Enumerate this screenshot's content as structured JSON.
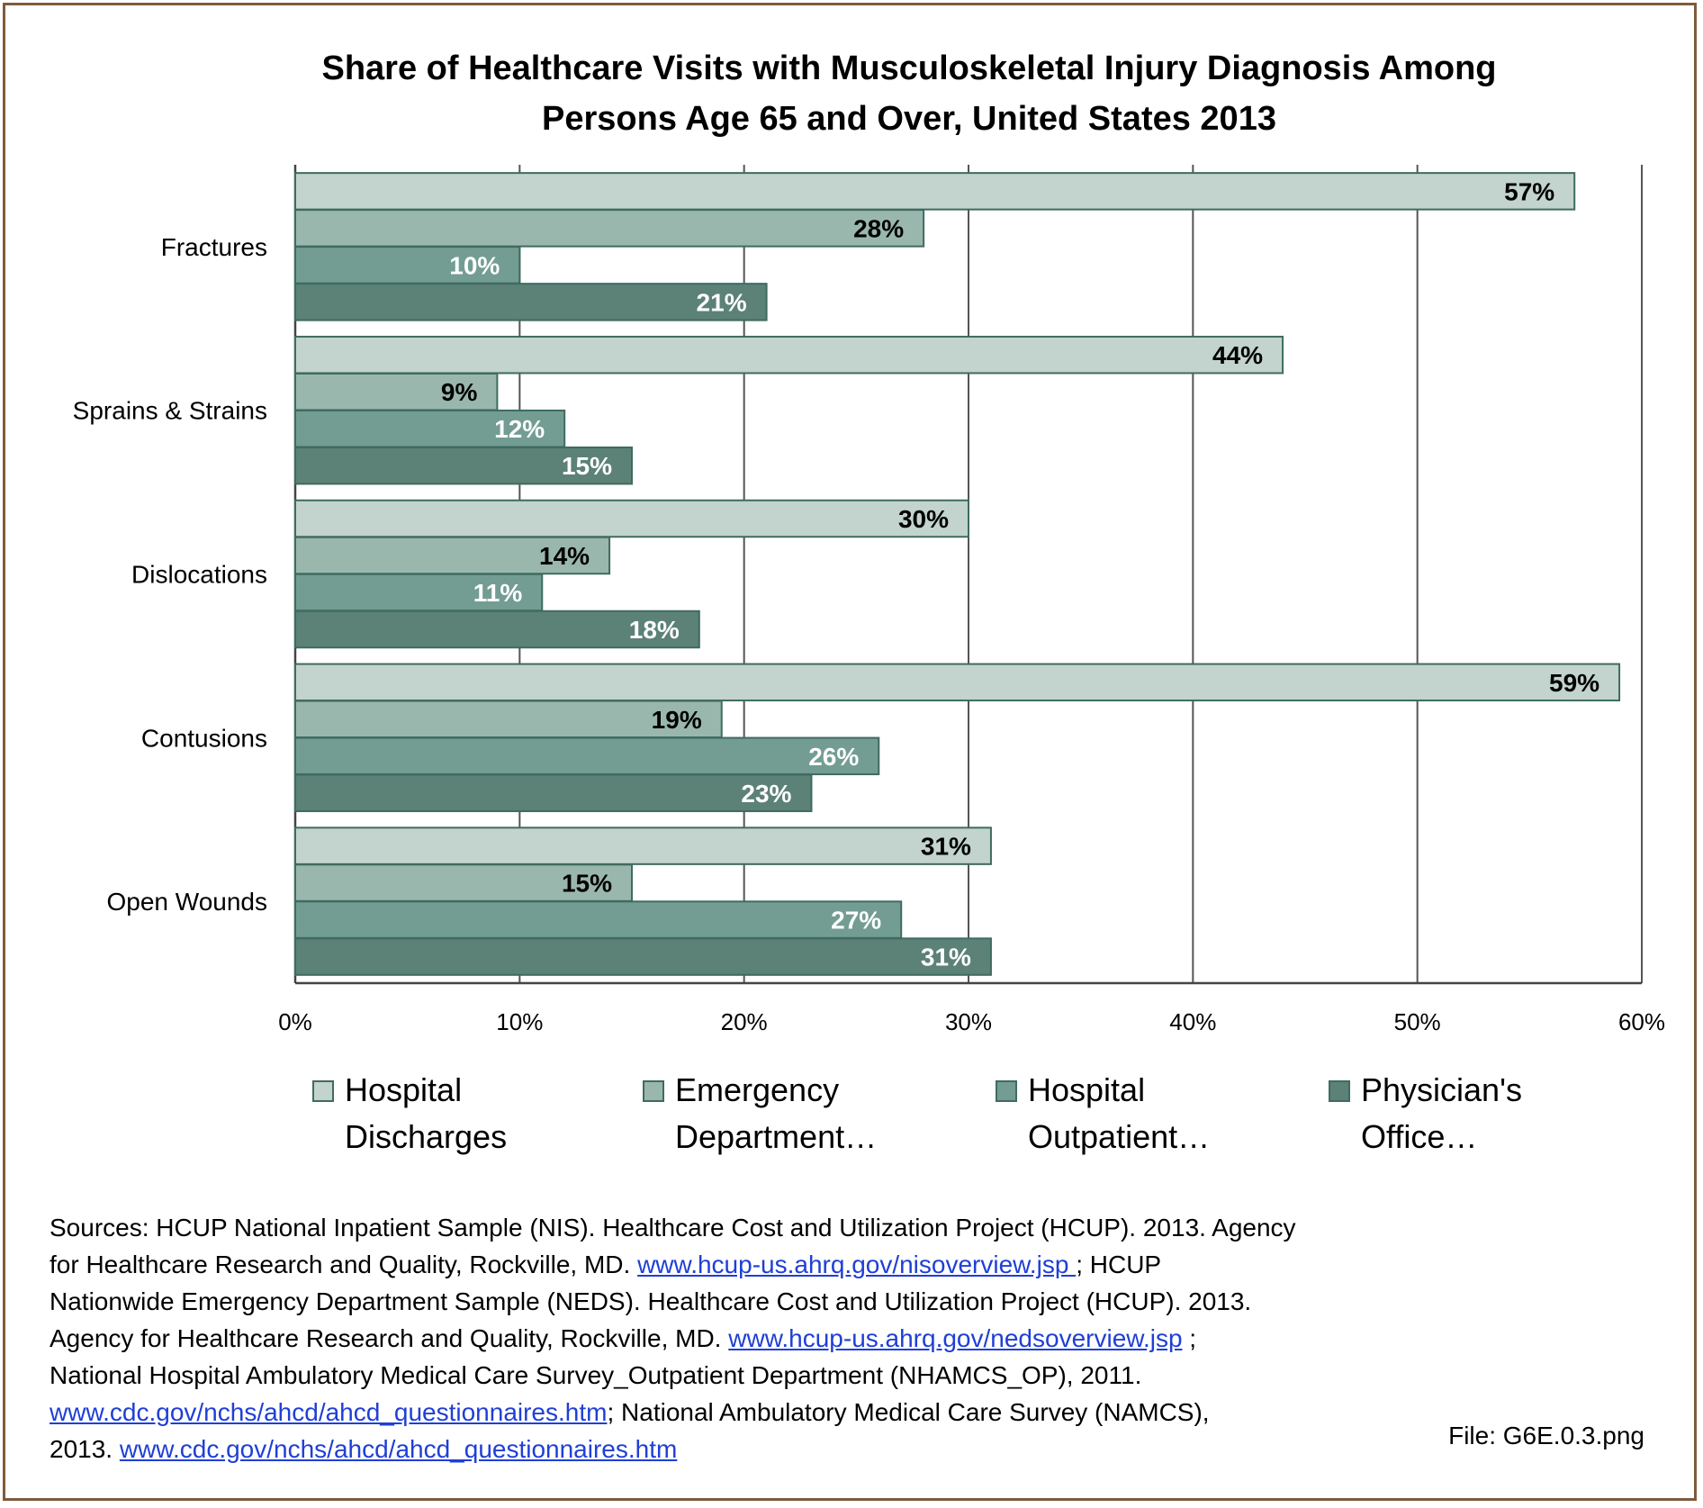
{
  "chart_data": {
    "type": "bar",
    "orientation": "horizontal",
    "title": "Share of Healthcare Visits with Musculoskeletal Injury Diagnosis Among Persons Age 65 and Over, United States 2013",
    "title_lines": [
      "Share of Healthcare Visits with Musculoskeletal Injury Diagnosis Among",
      "Persons Age 65 and Over, United States 2013"
    ],
    "categories": [
      "Fractures",
      "Sprains & Strains",
      "Dislocations",
      "Contusions",
      "Open Wounds"
    ],
    "series": [
      {
        "name": "Hospital Discharges",
        "legend_lines": [
          "Hospital",
          "Discharges"
        ],
        "values": [
          57,
          44,
          30,
          59,
          31
        ],
        "labels": [
          "57%",
          "44%",
          "30%",
          "59%",
          "31%"
        ],
        "color": "#c3d3ce",
        "label_color": "#000000"
      },
      {
        "name": "Emergency Department…",
        "legend_lines": [
          "Emergency",
          "Department…"
        ],
        "values": [
          28,
          9,
          14,
          19,
          15
        ],
        "labels": [
          "28%",
          "9%",
          "14%",
          "19%",
          "15%"
        ],
        "color": "#9ab7ae",
        "label_color": "#000000"
      },
      {
        "name": "Hospital Outpatient…",
        "legend_lines": [
          "Hospital",
          "Outpatient…"
        ],
        "values": [
          10,
          12,
          11,
          26,
          27
        ],
        "labels": [
          "10%",
          "12%",
          "11%",
          "26%",
          "27%"
        ],
        "color": "#739d92",
        "label_color": "#ffffff"
      },
      {
        "name": "Physician's Office…",
        "legend_lines": [
          "Physician's",
          "Office…"
        ],
        "values": [
          21,
          15,
          18,
          23,
          31
        ],
        "labels": [
          "21%",
          "15%",
          "18%",
          "23%",
          "31%"
        ],
        "color": "#5c8177",
        "label_color": "#ffffff"
      }
    ],
    "xlim": [
      0,
      60
    ],
    "xticks": [
      0,
      10,
      20,
      30,
      40,
      50,
      60
    ],
    "xtick_labels": [
      "0%",
      "10%",
      "20%",
      "30%",
      "40%",
      "50%",
      "60%"
    ],
    "grid": "vertical",
    "legend_position": "bottom",
    "bar_border_color": "#3f6b60",
    "gridline_color": "#555555"
  },
  "sources": {
    "lines": [
      [
        {
          "t": "Sources: HCUP National Inpatient Sample (NIS). Healthcare Cost and Utilization Project (HCUP). 2013. Agency"
        }
      ],
      [
        {
          "t": "for Healthcare Research and Quality, Rockville, MD. "
        },
        {
          "t": "www.hcup-us.ahrq.gov/nisoverview.jsp ",
          "link": true
        },
        {
          "t": "; HCUP"
        }
      ],
      [
        {
          "t": "Nationwide Emergency Department Sample (NEDS). Healthcare Cost and Utilization Project (HCUP). 2013."
        }
      ],
      [
        {
          "t": "Agency for Healthcare Research and Quality, Rockville, MD. "
        },
        {
          "t": "www.hcup-us.ahrq.gov/nedsoverview.jsp",
          "link": true
        },
        {
          "t": " ;"
        }
      ],
      [
        {
          "t": "National Hospital Ambulatory Medical Care Survey_Outpatient Department (NHAMCS_OP), 2011."
        }
      ],
      [
        {
          "t": "www.cdc.gov/nchs/ahcd/ahcd_questionnaires.htm",
          "link": true
        },
        {
          "t": ";  National Ambulatory Medical Care Survey (NAMCS),"
        }
      ],
      [
        {
          "t": "2013.  "
        },
        {
          "t": "www.cdc.gov/nchs/ahcd/ahcd_questionnaires.htm",
          "link": true
        }
      ]
    ]
  },
  "file_label": "File: G6E.0.3.png"
}
